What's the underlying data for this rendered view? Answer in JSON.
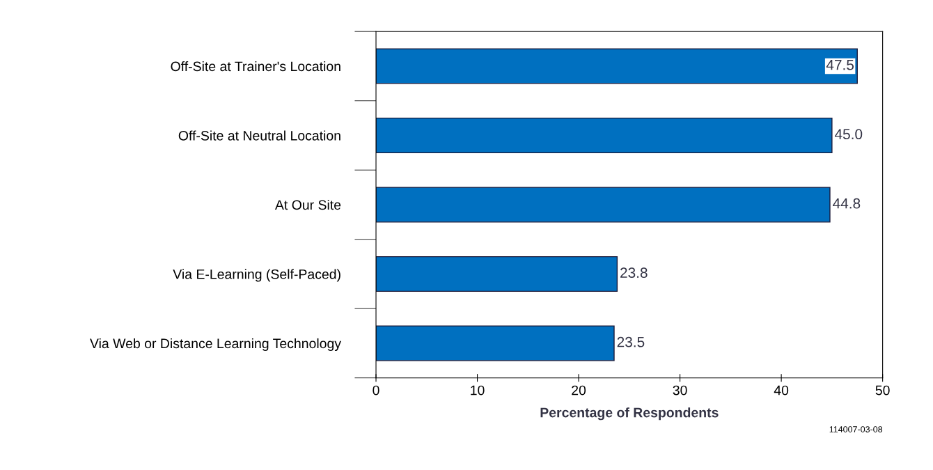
{
  "chart_data": {
    "type": "bar",
    "orientation": "horizontal",
    "categories": [
      "Off-Site at Trainer's Location",
      "Off-Site at Neutral Location",
      "At Our Site",
      "Via E-Learning (Self-Paced)",
      "Via Web or Distance Learning Technology"
    ],
    "values": [
      47.5,
      45.0,
      44.8,
      23.8,
      23.5
    ],
    "color": "#0070c0",
    "xlim": [
      0,
      50
    ],
    "xticks": [
      0,
      10,
      20,
      30,
      40,
      50
    ],
    "xlabel": "Percentage of Respondents",
    "value_labels": [
      "47.5",
      "45.0",
      "44.8",
      "23.8",
      "23.5"
    ],
    "grid": false,
    "annotations": [
      "114007-03-08"
    ]
  }
}
